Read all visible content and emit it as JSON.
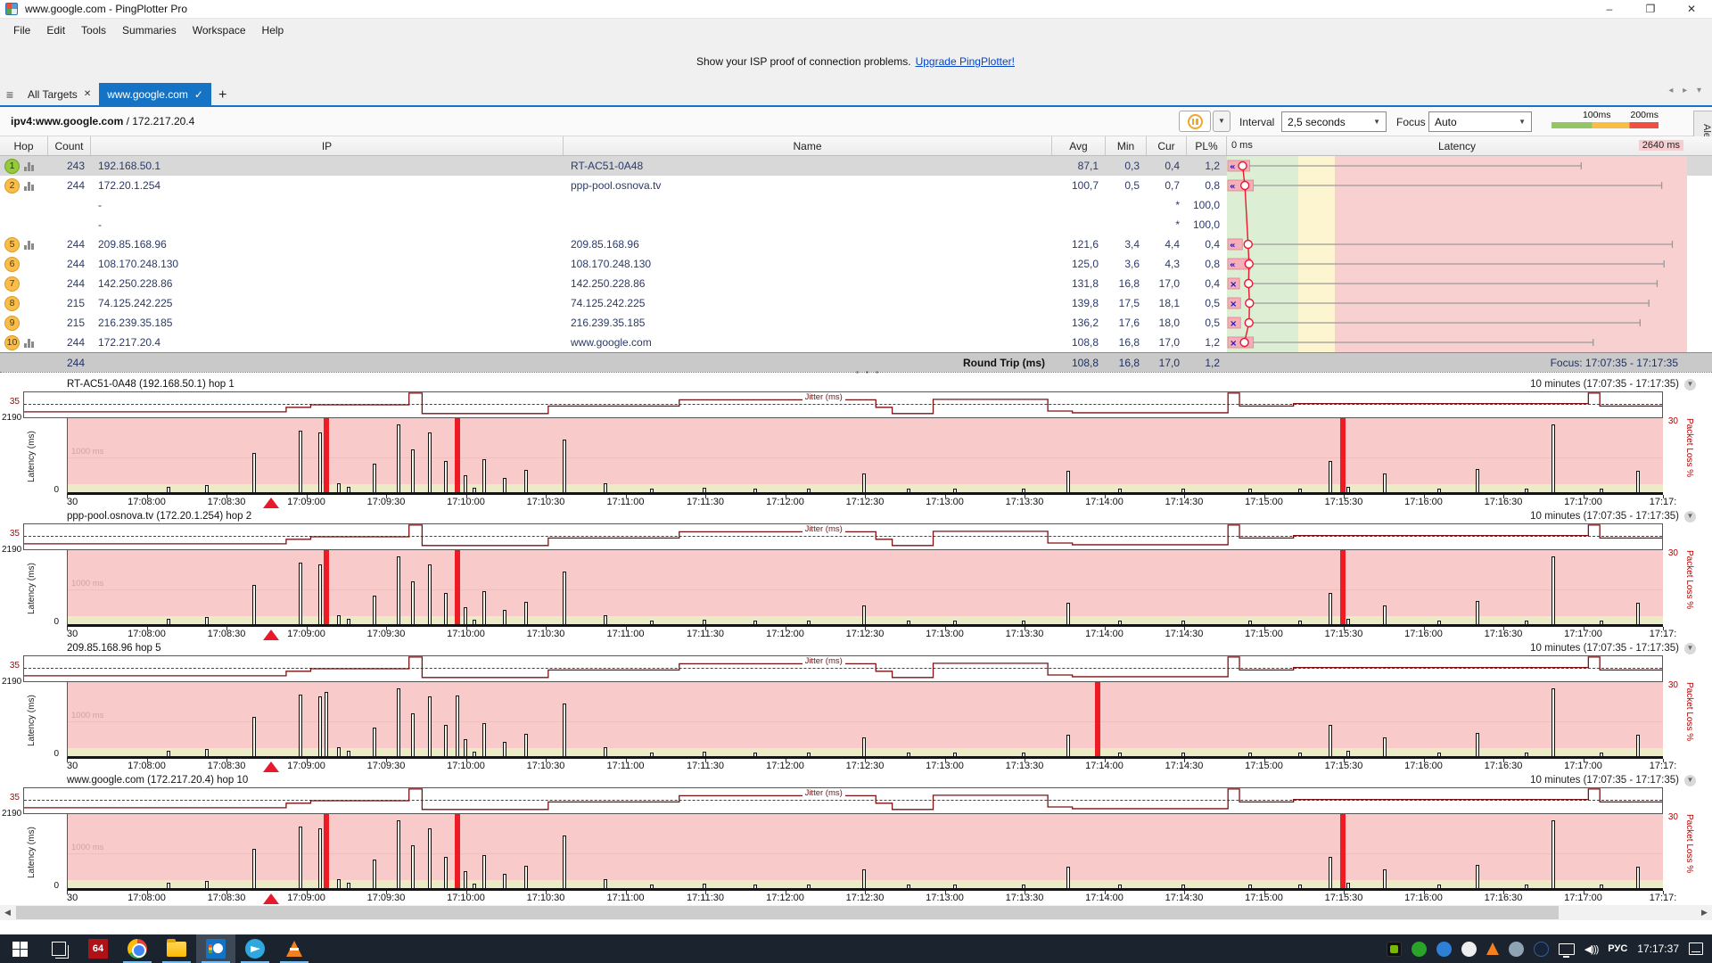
{
  "window": {
    "title": "www.google.com - PingPlotter Pro"
  },
  "menu": {
    "items": [
      "File",
      "Edit",
      "Tools",
      "Summaries",
      "Workspace",
      "Help"
    ]
  },
  "notice": {
    "text": "Show your ISP proof of connection problems.",
    "link": "Upgrade PingPlotter!"
  },
  "tabs": {
    "all_targets": "All Targets",
    "active": "www.google.com",
    "new_tab": "+"
  },
  "target": {
    "host": "ipv4:www.google.com",
    "ip_suffix": " / 172.217.20.4"
  },
  "toolbar": {
    "interval_label": "Interval",
    "interval_value": "2,5 seconds",
    "focus_label": "Focus",
    "focus_value": "Auto",
    "legend_100": "100ms",
    "legend_200": "200ms",
    "alerts_label": "Alerts"
  },
  "table": {
    "headers": {
      "hop": "Hop",
      "count": "Count",
      "ip": "IP",
      "name": "Name",
      "avg": "Avg",
      "min": "Min",
      "cur": "Cur",
      "pl": "PL%"
    },
    "lat_header": {
      "zero": "0 ms",
      "title": "Latency",
      "max": "2640 ms"
    },
    "rows": [
      {
        "hop": "1",
        "color": "green",
        "bars": true,
        "count": "243",
        "ip": "192.168.50.1",
        "name": "RT-AC51-0A48",
        "avg": "87,1",
        "min": "0,3",
        "cur": "0,4",
        "pl": "1,2",
        "lat": {
          "m": "«",
          "box": 0.032,
          "cur": 0.034,
          "max": 0.77
        }
      },
      {
        "hop": "2",
        "color": "orange",
        "bars": true,
        "count": "244",
        "ip": "172.20.1.254",
        "name": "ppp-pool.osnova.tv",
        "avg": "100,7",
        "min": "0,5",
        "cur": "0,7",
        "pl": "0,8",
        "lat": {
          "m": "«",
          "box": 0.04,
          "cur": 0.039,
          "max": 0.945
        }
      },
      {
        "hop": "",
        "color": "",
        "bars": false,
        "count": "",
        "ip": "-",
        "name": "",
        "avg": "",
        "min": "",
        "cur": "*",
        "pl": "100,0",
        "lat": null
      },
      {
        "hop": "",
        "color": "",
        "bars": false,
        "count": "",
        "ip": "-",
        "name": "",
        "avg": "",
        "min": "",
        "cur": "*",
        "pl": "100,0",
        "lat": null
      },
      {
        "hop": "5",
        "color": "orange",
        "bars": true,
        "count": "244",
        "ip": "209.85.168.96",
        "name": "209.85.168.96",
        "avg": "121,6",
        "min": "3,4",
        "cur": "4,4",
        "pl": "0,4",
        "lat": {
          "m": "«",
          "box": 0.016,
          "cur": 0.046,
          "max": 0.968
        }
      },
      {
        "hop": "6",
        "color": "orange",
        "bars": false,
        "count": "244",
        "ip": "108.170.248.130",
        "name": "108.170.248.130",
        "avg": "125,0",
        "min": "3,6",
        "cur": "4,3",
        "pl": "0,8",
        "lat": {
          "m": "«",
          "box": 0.034,
          "cur": 0.048,
          "max": 0.95
        }
      },
      {
        "hop": "7",
        "color": "orange",
        "bars": false,
        "count": "244",
        "ip": "142.250.228.86",
        "name": "142.250.228.86",
        "avg": "131,8",
        "min": "16,8",
        "cur": "17,0",
        "pl": "0,4",
        "lat": {
          "m": "×",
          "box": 0.01,
          "cur": 0.047,
          "max": 0.935
        }
      },
      {
        "hop": "8",
        "color": "orange",
        "bars": false,
        "count": "215",
        "ip": "74.125.242.225",
        "name": "74.125.242.225",
        "avg": "139,8",
        "min": "17,5",
        "cur": "18,1",
        "pl": "0,5",
        "lat": {
          "m": "×",
          "box": 0.012,
          "cur": 0.049,
          "max": 0.917
        }
      },
      {
        "hop": "9",
        "color": "orange",
        "bars": false,
        "count": "215",
        "ip": "216.239.35.185",
        "name": "216.239.35.185",
        "avg": "136,2",
        "min": "17,6",
        "cur": "18,0",
        "pl": "0,5",
        "lat": {
          "m": "×",
          "box": 0.012,
          "cur": 0.048,
          "max": 0.898
        }
      },
      {
        "hop": "10",
        "color": "orange",
        "bars": true,
        "count": "244",
        "ip": "172.217.20.4",
        "name": "www.google.com",
        "avg": "108,8",
        "min": "16,8",
        "cur": "17,0",
        "pl": "1,2",
        "lat": {
          "m": "×",
          "box": 0.04,
          "cur": 0.038,
          "max": 0.796
        }
      }
    ],
    "summary": {
      "count": "244",
      "label": "Round Trip (ms)",
      "avg": "108,8",
      "min": "16,8",
      "cur": "17,0",
      "pl": "1,2",
      "focus": "Focus: 17:07:35 - 17:17:35"
    }
  },
  "graphs": {
    "period_label": "10 minutes (17:07:35 - 17:17:35)",
    "jitter_label": "Jitter (ms)",
    "jitter_max": "35",
    "lat_max": "2190",
    "lat_min": "0",
    "lat_axis": "Latency (ms)",
    "grid_label": "1000 ms",
    "loss_max": "30",
    "loss_axis": "Packet Loss %",
    "triangle_x": 0.128,
    "ticks": [
      "30",
      "17:08:00",
      "17:08:30",
      "17:09:00",
      "17:09:30",
      "17:10:00",
      "17:10:30",
      "17:11:00",
      "17:11:30",
      "17:12:00",
      "17:12:30",
      "17:13:00",
      "17:13:30",
      "17:14:00",
      "17:14:30",
      "17:15:00",
      "17:15:30",
      "17:16:00",
      "17:16:30",
      "17:17:00",
      "17:17:"
    ],
    "jitter_line": [
      [
        0,
        0.78
      ],
      [
        0.16,
        0.78
      ],
      [
        0.16,
        0.6
      ],
      [
        0.175,
        0.6
      ],
      [
        0.175,
        0.5
      ],
      [
        0.235,
        0.5
      ],
      [
        0.235,
        0.03
      ],
      [
        0.243,
        0.03
      ],
      [
        0.243,
        0.85
      ],
      [
        0.32,
        0.85
      ],
      [
        0.32,
        0.55
      ],
      [
        0.4,
        0.55
      ],
      [
        0.4,
        0.3
      ],
      [
        0.52,
        0.3
      ],
      [
        0.52,
        0.6
      ],
      [
        0.53,
        0.6
      ],
      [
        0.53,
        0.85
      ],
      [
        0.555,
        0.85
      ],
      [
        0.555,
        0.28
      ],
      [
        0.625,
        0.28
      ],
      [
        0.625,
        0.75
      ],
      [
        0.64,
        0.75
      ],
      [
        0.64,
        0.82
      ],
      [
        0.735,
        0.82
      ],
      [
        0.735,
        0.03
      ],
      [
        0.742,
        0.03
      ],
      [
        0.742,
        0.55
      ],
      [
        0.775,
        0.55
      ],
      [
        0.775,
        0.45
      ],
      [
        0.955,
        0.45
      ],
      [
        0.955,
        0.03
      ],
      [
        0.962,
        0.03
      ],
      [
        0.962,
        0.55
      ],
      [
        1,
        0.55
      ]
    ],
    "bars_base": [
      [
        0.063,
        0.08
      ],
      [
        0.087,
        0.1
      ],
      [
        0.117,
        0.55
      ],
      [
        0.146,
        0.87
      ],
      [
        0.158,
        0.84
      ],
      [
        0.17,
        0.13
      ],
      [
        0.176,
        0.07
      ],
      [
        0.192,
        0.4
      ],
      [
        0.207,
        0.96
      ],
      [
        0.216,
        0.6
      ],
      [
        0.227,
        0.84
      ],
      [
        0.237,
        0.44
      ],
      [
        0.249,
        0.24
      ],
      [
        0.255,
        0.06
      ],
      [
        0.261,
        0.46
      ],
      [
        0.274,
        0.2
      ],
      [
        0.287,
        0.32
      ],
      [
        0.311,
        0.74
      ],
      [
        0.337,
        0.13
      ],
      [
        0.366,
        0.05
      ],
      [
        0.399,
        0.06
      ],
      [
        0.431,
        0.05
      ],
      [
        0.464,
        0.05
      ],
      [
        0.499,
        0.27
      ],
      [
        0.527,
        0.05
      ],
      [
        0.556,
        0.05
      ],
      [
        0.599,
        0.05
      ],
      [
        0.627,
        0.3
      ],
      [
        0.659,
        0.05
      ],
      [
        0.699,
        0.05
      ],
      [
        0.741,
        0.05
      ],
      [
        0.772,
        0.05
      ],
      [
        0.791,
        0.44
      ],
      [
        0.802,
        0.08
      ],
      [
        0.825,
        0.27
      ],
      [
        0.859,
        0.05
      ],
      [
        0.883,
        0.33
      ],
      [
        0.914,
        0.05
      ],
      [
        0.931,
        0.96
      ],
      [
        0.961,
        0.05
      ],
      [
        0.984,
        0.3
      ]
    ],
    "items": [
      {
        "title": "RT-AC51-0A48 (192.168.50.1) hop 1",
        "losses": [
          0.162,
          0.244,
          0.799
        ]
      },
      {
        "title": "ppp-pool.osnova.tv (172.20.1.254) hop 2",
        "losses": [
          0.162,
          0.244,
          0.799
        ]
      },
      {
        "title": "209.85.168.96 hop 5",
        "losses": [
          0.645
        ],
        "extra_bars": [
          [
            0.162,
            0.9
          ],
          [
            0.244,
            0.85
          ]
        ]
      },
      {
        "title": "www.google.com (172.217.20.4) hop 10",
        "losses": [
          0.162,
          0.244,
          0.799
        ]
      }
    ]
  },
  "taskbar": {
    "lang": "РУС",
    "time": "17:17:37"
  }
}
